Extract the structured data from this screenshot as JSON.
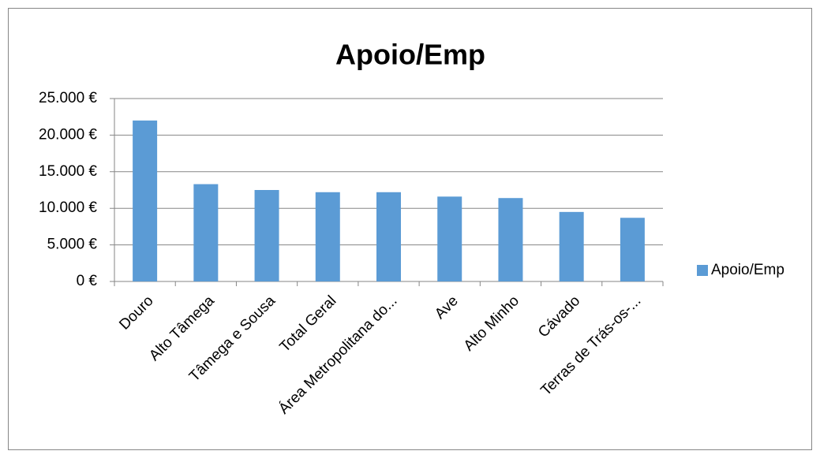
{
  "chart_data": {
    "type": "bar",
    "title": "Apoio/Emp",
    "categories": [
      "Douro",
      "Alto Tâmega",
      "Tâmega e Sousa",
      "Total Geral",
      "Área Metropolitana do...",
      "Ave",
      "Alto Minho",
      "Cávado",
      "Terras de Trás-os-..."
    ],
    "series": [
      {
        "name": "Apoio/Emp",
        "color": "#5b9bd5",
        "values": [
          22000,
          13300,
          12500,
          12200,
          12200,
          11600,
          11400,
          9500,
          8700
        ]
      }
    ],
    "ylim": [
      0,
      25000
    ],
    "yticks": [
      {
        "value": 0,
        "label": "0 €"
      },
      {
        "value": 5000,
        "label": "5.000 €"
      },
      {
        "value": 10000,
        "label": "10.000 €"
      },
      {
        "value": 15000,
        "label": "15.000 €"
      },
      {
        "value": 20000,
        "label": "20.000 €"
      },
      {
        "value": 25000,
        "label": "25.000 €"
      }
    ],
    "grid": true,
    "legend": "right"
  }
}
